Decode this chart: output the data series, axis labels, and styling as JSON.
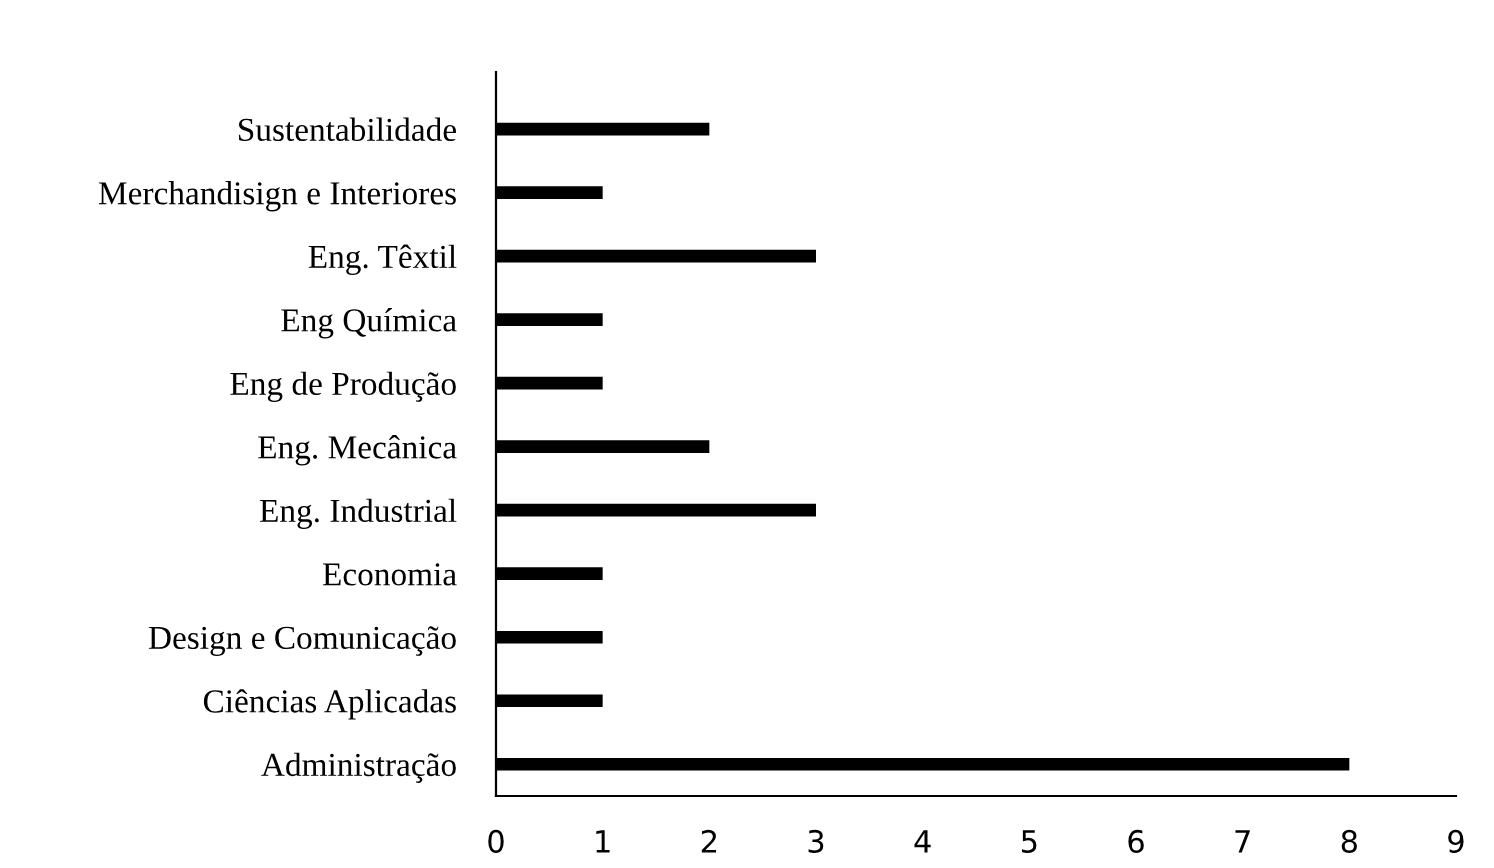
{
  "chart_data": {
    "type": "bar",
    "orientation": "horizontal",
    "categories": [
      "Sustentabilidade",
      "Merchandisign e Interiores",
      "Eng. Têxtil",
      "Eng Química",
      "Eng de Produção",
      "Eng. Mecânica",
      "Eng. Industrial",
      "Economia",
      "Design e Comunicação",
      "Ciências Aplicadas",
      "Administração"
    ],
    "values": [
      2,
      1,
      3,
      1,
      1,
      2,
      3,
      1,
      1,
      1,
      8
    ],
    "color": "#000000",
    "xlim": [
      0,
      9
    ],
    "xticks": [
      0,
      1,
      2,
      3,
      4,
      5,
      6,
      7,
      8,
      9
    ],
    "grid": false,
    "legend": false
  }
}
